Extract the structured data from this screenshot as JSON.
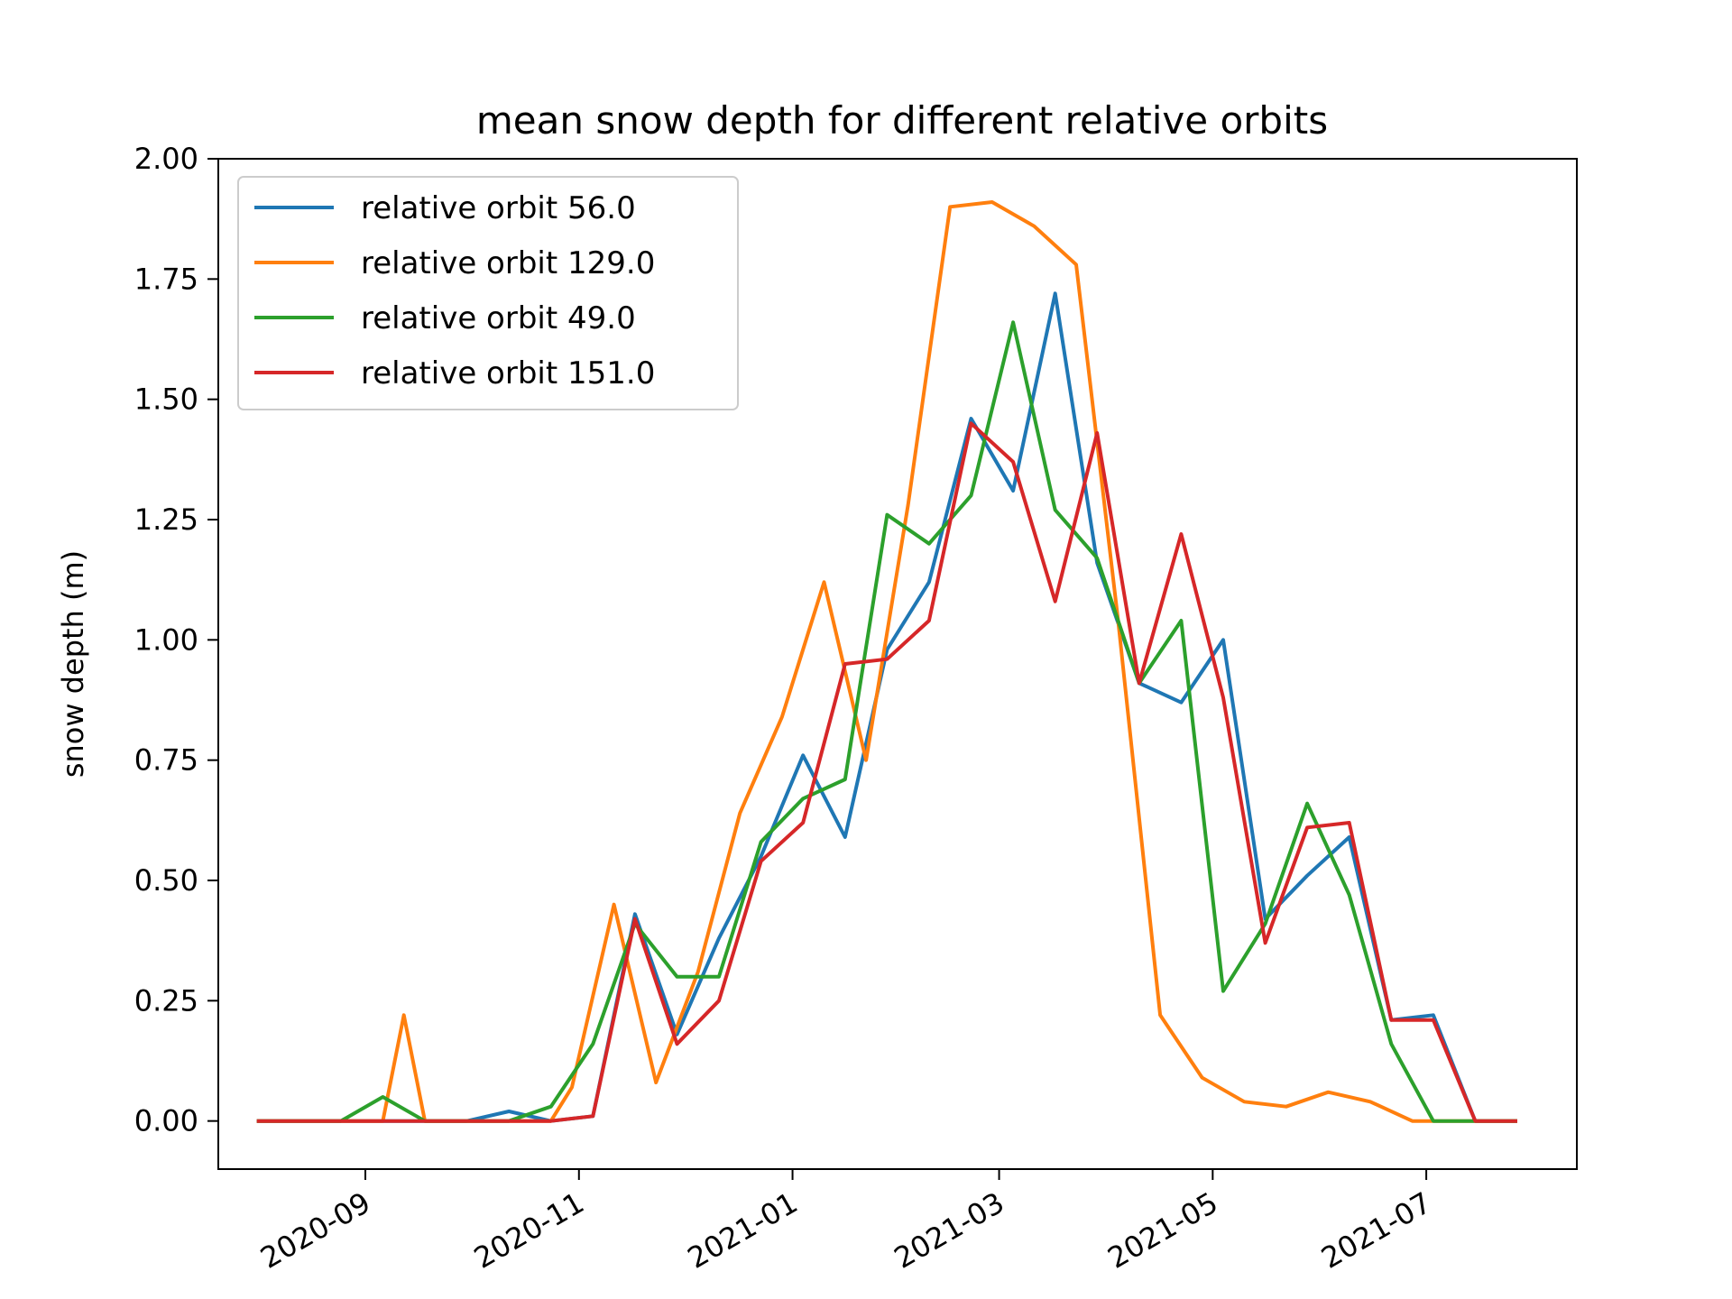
{
  "chart_data": {
    "type": "line",
    "title": "mean snow depth for different relative orbits",
    "xlabel": "",
    "ylabel": "snow depth (m)",
    "xlim": [
      "2020-07-21",
      "2021-08-13"
    ],
    "ylim": [
      -0.1,
      2.0
    ],
    "x_ticks": [
      "2020-09-01",
      "2020-11-01",
      "2021-01-01",
      "2021-03-01",
      "2021-05-01",
      "2021-07-01"
    ],
    "x_tick_labels": [
      "2020-09",
      "2020-11",
      "2021-01",
      "2021-03",
      "2021-05",
      "2021-07"
    ],
    "y_ticks": [
      0.0,
      0.25,
      0.5,
      0.75,
      1.0,
      1.25,
      1.5,
      1.75,
      2.0
    ],
    "y_tick_labels": [
      "0.00",
      "0.25",
      "0.50",
      "0.75",
      "1.00",
      "1.25",
      "1.50",
      "1.75",
      "2.00"
    ],
    "grid": false,
    "legend_position": "top-left",
    "series": [
      {
        "name": "relative orbit 56.0",
        "color": "#1f77b4",
        "x": [
          "2020-08-01",
          "2020-08-13",
          "2020-08-25",
          "2020-09-06",
          "2020-09-18",
          "2020-09-30",
          "2020-10-12",
          "2020-10-24",
          "2020-11-05",
          "2020-11-17",
          "2020-11-29",
          "2020-12-11",
          "2020-12-23",
          "2021-01-04",
          "2021-01-16",
          "2021-01-28",
          "2021-02-09",
          "2021-02-21",
          "2021-03-05",
          "2021-03-17",
          "2021-03-29",
          "2021-04-10",
          "2021-04-22",
          "2021-05-04",
          "2021-05-16",
          "2021-05-28",
          "2021-06-09",
          "2021-06-21",
          "2021-07-03",
          "2021-07-15",
          "2021-07-27"
        ],
        "y": [
          0.0,
          0.0,
          0.0,
          0.0,
          0.0,
          0.0,
          0.02,
          0.0,
          0.01,
          0.43,
          0.18,
          0.38,
          0.55,
          0.76,
          0.59,
          0.98,
          1.12,
          1.46,
          1.31,
          1.72,
          1.16,
          0.91,
          0.87,
          1.0,
          0.42,
          0.51,
          0.59,
          0.21,
          0.22,
          0.0,
          0.0
        ]
      },
      {
        "name": "relative orbit 129.0",
        "color": "#ff7f0e",
        "x": [
          "2020-08-01",
          "2020-08-13",
          "2020-08-25",
          "2020-09-06",
          "2020-09-12",
          "2020-09-18",
          "2020-09-30",
          "2020-10-12",
          "2020-10-24",
          "2020-10-30",
          "2020-11-11",
          "2020-11-23",
          "2020-12-05",
          "2020-12-17",
          "2020-12-29",
          "2021-01-10",
          "2021-01-22",
          "2021-02-03",
          "2021-02-15",
          "2021-02-27",
          "2021-03-11",
          "2021-03-23",
          "2021-04-04",
          "2021-04-16",
          "2021-04-28",
          "2021-05-10",
          "2021-05-22",
          "2021-06-03",
          "2021-06-15",
          "2021-06-27",
          "2021-07-09",
          "2021-07-21",
          "2021-07-27"
        ],
        "y": [
          0.0,
          0.0,
          0.0,
          0.0,
          0.22,
          0.0,
          0.0,
          0.0,
          0.0,
          0.07,
          0.45,
          0.08,
          0.31,
          0.64,
          0.84,
          1.12,
          0.75,
          1.28,
          1.9,
          1.91,
          1.86,
          1.78,
          1.04,
          0.22,
          0.09,
          0.04,
          0.03,
          0.06,
          0.04,
          0.0,
          0.0,
          0.0,
          0.0
        ]
      },
      {
        "name": "relative orbit 49.0",
        "color": "#2ca02c",
        "x": [
          "2020-08-01",
          "2020-08-13",
          "2020-08-25",
          "2020-09-06",
          "2020-09-18",
          "2020-09-30",
          "2020-10-12",
          "2020-10-24",
          "2020-11-05",
          "2020-11-17",
          "2020-11-29",
          "2020-12-11",
          "2020-12-23",
          "2021-01-04",
          "2021-01-16",
          "2021-01-28",
          "2021-02-09",
          "2021-02-21",
          "2021-03-05",
          "2021-03-17",
          "2021-03-29",
          "2021-04-10",
          "2021-04-22",
          "2021-05-04",
          "2021-05-16",
          "2021-05-28",
          "2021-06-09",
          "2021-06-21",
          "2021-07-03",
          "2021-07-15",
          "2021-07-27"
        ],
        "y": [
          0.0,
          0.0,
          0.0,
          0.05,
          0.0,
          0.0,
          0.0,
          0.03,
          0.16,
          0.41,
          0.3,
          0.3,
          0.58,
          0.67,
          0.71,
          1.26,
          1.2,
          1.3,
          1.66,
          1.27,
          1.17,
          0.91,
          1.04,
          0.27,
          0.41,
          0.66,
          0.47,
          0.16,
          0.0,
          0.0,
          0.0
        ]
      },
      {
        "name": "relative orbit 151.0",
        "color": "#d62728",
        "x": [
          "2020-08-01",
          "2020-08-13",
          "2020-08-25",
          "2020-09-06",
          "2020-09-18",
          "2020-09-30",
          "2020-10-12",
          "2020-10-24",
          "2020-11-05",
          "2020-11-17",
          "2020-11-29",
          "2020-12-11",
          "2020-12-23",
          "2021-01-04",
          "2021-01-16",
          "2021-01-28",
          "2021-02-09",
          "2021-02-21",
          "2021-03-05",
          "2021-03-17",
          "2021-03-29",
          "2021-04-10",
          "2021-04-22",
          "2021-05-04",
          "2021-05-16",
          "2021-05-28",
          "2021-06-09",
          "2021-06-21",
          "2021-07-03",
          "2021-07-15",
          "2021-07-27"
        ],
        "y": [
          0.0,
          0.0,
          0.0,
          0.0,
          0.0,
          0.0,
          0.0,
          0.0,
          0.01,
          0.42,
          0.16,
          0.25,
          0.54,
          0.62,
          0.95,
          0.96,
          1.04,
          1.45,
          1.37,
          1.08,
          1.43,
          0.91,
          1.22,
          0.88,
          0.37,
          0.61,
          0.62,
          0.21,
          0.21,
          0.0,
          0.0
        ]
      }
    ]
  }
}
